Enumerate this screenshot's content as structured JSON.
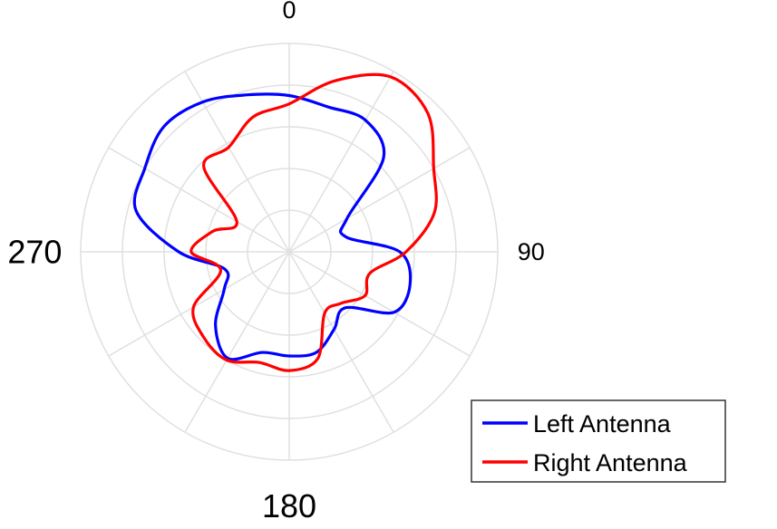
{
  "chart_data": {
    "type": "line",
    "subtype": "polar",
    "title": "",
    "theta_direction": "clockwise",
    "theta_zero_location": "top",
    "angle_labels": [
      {
        "angle": 0,
        "text": "0",
        "size": "small"
      },
      {
        "angle": 90,
        "text": "90",
        "size": "small"
      },
      {
        "angle": 180,
        "text": "180",
        "size": "large"
      },
      {
        "angle": 270,
        "text": "270",
        "size": "large"
      }
    ],
    "radial_grid": {
      "rings": 5,
      "spokes_deg": 30
    },
    "rlim": [
      0,
      1
    ],
    "grid": true,
    "legend_location": "bottom-right",
    "theta_deg": [
      0,
      15,
      30,
      45,
      60,
      75,
      90,
      105,
      120,
      135,
      150,
      165,
      180,
      195,
      210,
      225,
      240,
      255,
      270,
      285,
      300,
      315,
      330,
      345
    ],
    "series": [
      {
        "name": "Left Antenna",
        "color": "#0000ff",
        "r": [
          0.75,
          0.72,
          0.73,
          0.64,
          0.32,
          0.28,
          0.53,
          0.6,
          0.58,
          0.38,
          0.43,
          0.5,
          0.5,
          0.5,
          0.59,
          0.5,
          0.36,
          0.32,
          0.53,
          0.76,
          0.8,
          0.85,
          0.83,
          0.78
        ],
        "unit": "normalized"
      },
      {
        "name": "Right Antenna",
        "color": "#ff0000",
        "r": [
          0.71,
          0.85,
          0.97,
          0.94,
          0.8,
          0.72,
          0.56,
          0.4,
          0.42,
          0.35,
          0.34,
          0.53,
          0.57,
          0.55,
          0.6,
          0.58,
          0.53,
          0.34,
          0.47,
          0.38,
          0.29,
          0.58,
          0.58,
          0.67
        ],
        "unit": "normalized"
      }
    ]
  }
}
